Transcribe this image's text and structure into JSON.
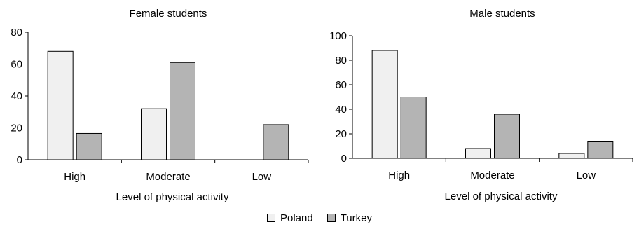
{
  "chart_data": [
    {
      "type": "bar",
      "title": "Female students",
      "xlabel": "Level of physical activity",
      "ylabel": "",
      "ylim": [
        0,
        80
      ],
      "yticks": [
        0,
        20,
        40,
        60,
        80
      ],
      "categories": [
        "High",
        "Moderate",
        "Low"
      ],
      "series": [
        {
          "name": "Poland",
          "values": [
            68,
            32,
            0
          ]
        },
        {
          "name": "Turkey",
          "values": [
            16.5,
            61,
            22
          ]
        }
      ]
    },
    {
      "type": "bar",
      "title": "Male students",
      "xlabel": "Level of physical activity",
      "ylabel": "",
      "ylim": [
        0,
        100
      ],
      "yticks": [
        0,
        20,
        40,
        60,
        80,
        100
      ],
      "categories": [
        "High",
        "Moderate",
        "Low"
      ],
      "series": [
        {
          "name": "Poland",
          "values": [
            88,
            8,
            4
          ]
        },
        {
          "name": "Turkey",
          "values": [
            50,
            36,
            14
          ]
        }
      ]
    }
  ],
  "legend": {
    "items": [
      {
        "label": "Poland",
        "color": "#f0f0f0"
      },
      {
        "label": "Turkey",
        "color": "#b4b4b4"
      }
    ],
    "placement": "bottom-center"
  },
  "colors": {
    "Poland": "#f0f0f0",
    "Turkey": "#b4b4b4"
  }
}
